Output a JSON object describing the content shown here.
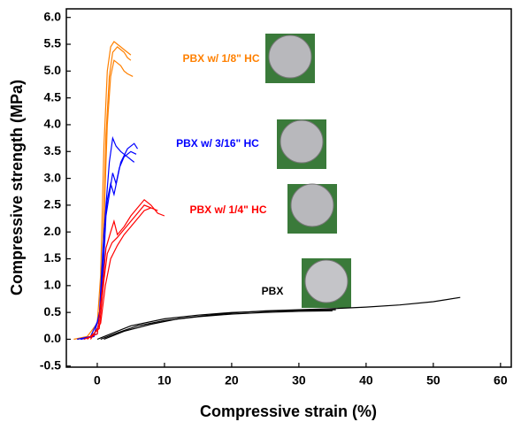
{
  "chart_data": {
    "type": "line",
    "xlabel": "Compressive strain (%)",
    "ylabel": "Compressive strength (MPa)",
    "xlim": [
      -4.6,
      61.6
    ],
    "ylim": [
      -0.52,
      6.16
    ],
    "xticks": [
      0,
      10,
      20,
      30,
      40,
      50,
      60
    ],
    "yticks": [
      -0.5,
      {
        "value": 0,
        "label": "0.0"
      },
      0.5,
      {
        "value": 1,
        "label": "1.0"
      },
      1.5,
      {
        "value": 2,
        "label": "2.0"
      },
      2.5,
      {
        "value": 3,
        "label": "3.0"
      },
      3.5,
      {
        "value": 4,
        "label": "4.0"
      },
      4.5,
      {
        "value": 5,
        "label": "5.0"
      },
      5.5,
      {
        "value": 6,
        "label": "6.0"
      }
    ],
    "series": [
      {
        "name": "PBX w/ 1/8\" HC",
        "color": "#ff8000",
        "curves": [
          {
            "x": [
              -3.5,
              -1.5,
              0,
              0.5,
              1,
              1.5,
              2,
              2.5,
              3,
              3.5,
              4,
              4.5,
              5
            ],
            "values": [
              0,
              0.05,
              0.3,
              1.2,
              3.6,
              5.0,
              5.45,
              5.55,
              5.5,
              5.45,
              5.4,
              5.35,
              5.3
            ]
          },
          {
            "x": [
              -3,
              -1,
              0.3,
              0.8,
              1.3,
              1.8,
              2.3,
              3,
              3.5,
              4,
              4.5,
              5
            ],
            "values": [
              0,
              0.05,
              0.4,
              1.5,
              3.8,
              4.9,
              5.35,
              5.45,
              5.4,
              5.35,
              5.25,
              5.2
            ]
          },
          {
            "x": [
              -2.5,
              -0.5,
              0.5,
              1,
              1.5,
              2,
              2.5,
              3,
              3.5,
              4,
              4.5,
              5.3
            ],
            "values": [
              0,
              0.05,
              0.6,
              2.2,
              4.0,
              4.9,
              5.2,
              5.15,
              5.1,
              5.0,
              4.95,
              4.9
            ]
          }
        ]
      },
      {
        "name": "PBX w/ 3/16\" HC",
        "color": "#0000ff",
        "curves": [
          {
            "x": [
              -3,
              -1,
              0.3,
              0.8,
              1.3,
              1.8,
              2.3,
              2.8,
              3.5,
              4.5,
              5.5
            ],
            "values": [
              0,
              0.05,
              0.4,
              1.6,
              2.5,
              3.3,
              3.75,
              3.6,
              3.5,
              3.4,
              3.3
            ]
          },
          {
            "x": [
              -2.5,
              -0.5,
              0.5,
              1,
              1.5,
              2,
              2.5,
              3,
              3.5,
              4.5,
              5.5,
              6
            ],
            "values": [
              0,
              0.05,
              0.6,
              2.0,
              2.6,
              2.9,
              2.7,
              3.0,
              3.3,
              3.55,
              3.65,
              3.55
            ]
          },
          {
            "x": [
              -2,
              0,
              0.8,
              1.3,
              1.8,
              2.3,
              2.8,
              3.3,
              4,
              5,
              5.8
            ],
            "values": [
              0,
              0.1,
              1.0,
              2.3,
              2.7,
              3.1,
              2.9,
              3.2,
              3.4,
              3.5,
              3.45
            ]
          }
        ]
      },
      {
        "name": "PBX w/ 1/4\" HC",
        "color": "#ff0000",
        "curves": [
          {
            "x": [
              -2,
              0,
              0.8,
              1.3,
              2,
              2.5,
              3,
              4,
              5,
              6,
              7,
              8,
              9,
              10
            ],
            "values": [
              0,
              0.1,
              1.0,
              1.7,
              2.0,
              2.2,
              1.95,
              2.1,
              2.3,
              2.45,
              2.6,
              2.5,
              2.35,
              2.3
            ]
          },
          {
            "x": [
              -1.5,
              0.3,
              1,
              1.5,
              2.2,
              3,
              4,
              5,
              6,
              7,
              8,
              9
            ],
            "values": [
              0,
              0.2,
              1.1,
              1.6,
              1.8,
              1.9,
              2.05,
              2.2,
              2.35,
              2.5,
              2.45,
              2.4
            ]
          },
          {
            "x": [
              -1,
              0.5,
              1.2,
              2,
              3,
              4,
              5,
              6,
              7,
              8
            ],
            "values": [
              0,
              0.3,
              1.0,
              1.5,
              1.75,
              1.95,
              2.1,
              2.25,
              2.4,
              2.45
            ]
          }
        ]
      },
      {
        "name": "PBX",
        "color": "#000000",
        "curves": [
          {
            "x": [
              0,
              2,
              5,
              10,
              15,
              20,
              25,
              30,
              35.5
            ],
            "values": [
              0,
              0.1,
              0.25,
              0.38,
              0.45,
              0.5,
              0.52,
              0.54,
              0.55
            ]
          },
          {
            "x": [
              0.5,
              3,
              6,
              10,
              15,
              20,
              25,
              30,
              35
            ],
            "values": [
              0,
              0.12,
              0.25,
              0.35,
              0.42,
              0.47,
              0.5,
              0.52,
              0.53
            ]
          },
          {
            "x": [
              1,
              4,
              8,
              12,
              16,
              20,
              25,
              30,
              35,
              40,
              45,
              50,
              54
            ],
            "values": [
              0,
              0.15,
              0.28,
              0.38,
              0.44,
              0.49,
              0.53,
              0.55,
              0.57,
              0.6,
              0.64,
              0.7,
              0.78
            ]
          }
        ]
      }
    ]
  }
}
